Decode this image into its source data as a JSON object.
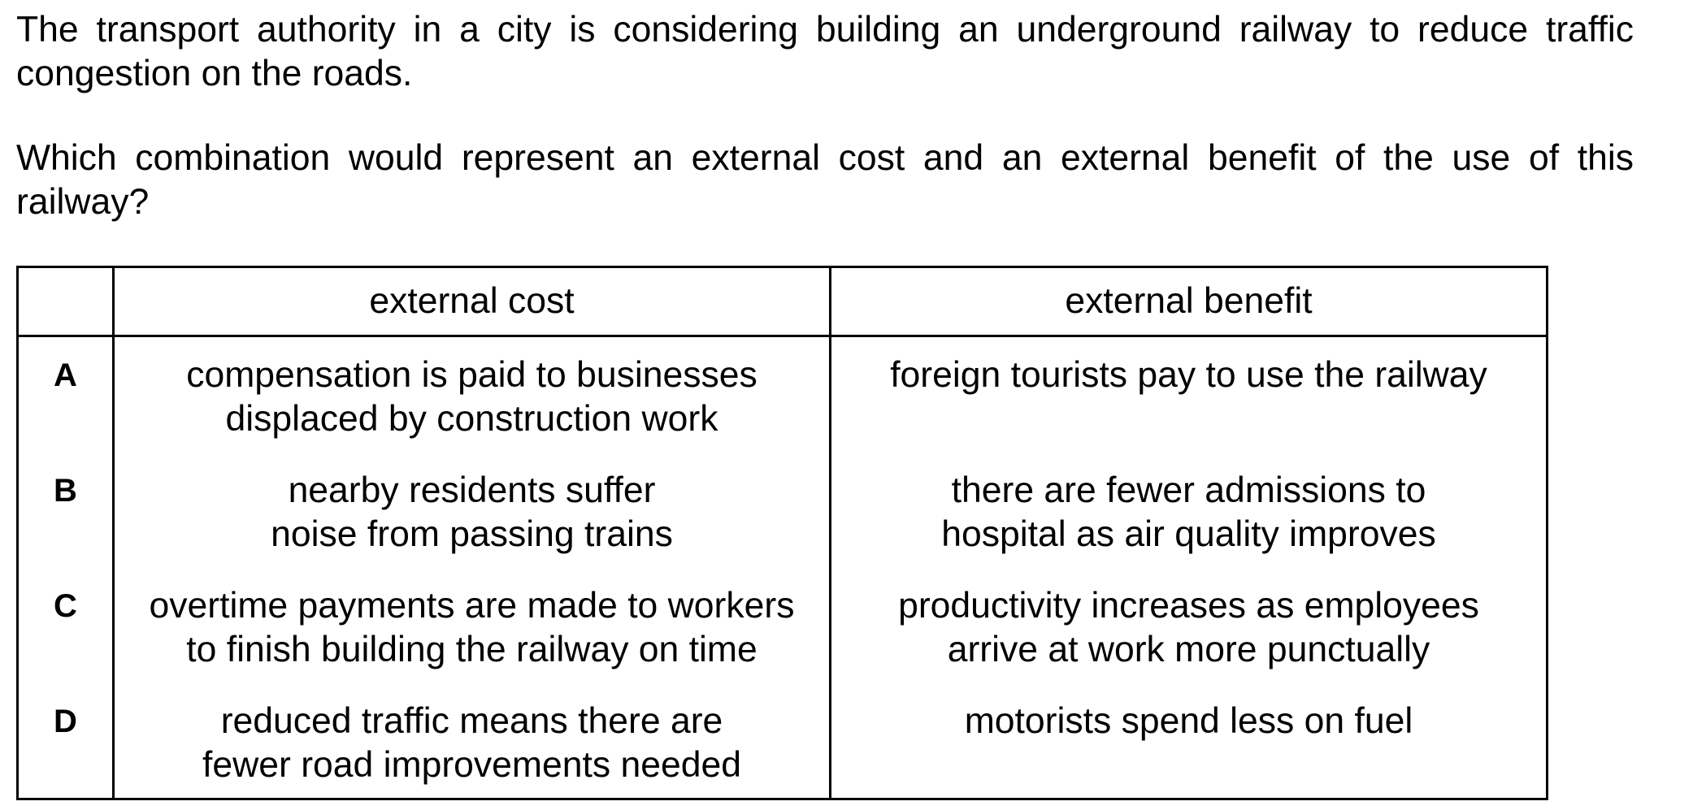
{
  "question": {
    "stem": "The transport authority in a city is considering building an underground railway to reduce traffic congestion on the roads.",
    "prompt": "Which combination would represent an external cost and an external benefit of the use of this railway?"
  },
  "table": {
    "headers": {
      "letter": "",
      "cost": "external cost",
      "benefit": "external benefit"
    },
    "rows": [
      {
        "letter": "A",
        "cost": "compensation is paid to businesses\ndisplaced by construction work",
        "benefit": "foreign tourists pay to use the railway"
      },
      {
        "letter": "B",
        "cost": "nearby residents suffer\nnoise from passing trains",
        "benefit": "there are fewer admissions to\nhospital as air quality improves"
      },
      {
        "letter": "C",
        "cost": "overtime payments are made to workers\nto finish building the railway on time",
        "benefit": "productivity increases as employees\narrive at work more punctually"
      },
      {
        "letter": "D",
        "cost": "reduced traffic means there are\nfewer road improvements needed",
        "benefit": "motorists spend less on fuel"
      }
    ]
  }
}
